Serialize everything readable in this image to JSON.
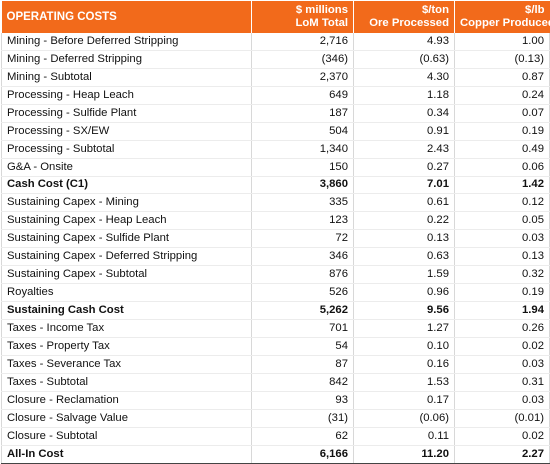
{
  "header": {
    "label": "OPERATING COSTS",
    "col1_l1": "$ millions",
    "col1_l2": "LoM Total",
    "col2_l1": "$/ton",
    "col2_l2": "Ore Processed",
    "col3_l1": "$/lb",
    "col3_l2": "Copper Produced"
  },
  "rows": [
    {
      "label": "Mining - Before Deferred Stripping",
      "total": "2,716",
      "per_ton": "4.93",
      "per_lb": "1.00"
    },
    {
      "label": "Mining - Deferred Stripping",
      "total": "(346)",
      "per_ton": "(0.63)",
      "per_lb": "(0.13)"
    },
    {
      "label": "Mining - Subtotal",
      "total": "2,370",
      "per_ton": "4.30",
      "per_lb": "0.87"
    },
    {
      "label": "Processing - Heap Leach",
      "total": "649",
      "per_ton": "1.18",
      "per_lb": "0.24"
    },
    {
      "label": "Processing - Sulfide Plant",
      "total": "187",
      "per_ton": "0.34",
      "per_lb": "0.07"
    },
    {
      "label": "Processing - SX/EW",
      "total": "504",
      "per_ton": "0.91",
      "per_lb": "0.19"
    },
    {
      "label": "Processing - Subtotal",
      "total": "1,340",
      "per_ton": "2.43",
      "per_lb": "0.49"
    },
    {
      "label": "G&A - Onsite",
      "total": "150",
      "per_ton": "0.27",
      "per_lb": "0.06"
    },
    {
      "label": "Cash Cost (C1)",
      "total": "3,860",
      "per_ton": "7.01",
      "per_lb": "1.42"
    },
    {
      "label": "Sustaining Capex - Mining",
      "total": "335",
      "per_ton": "0.61",
      "per_lb": "0.12"
    },
    {
      "label": "Sustaining Capex - Heap Leach",
      "total": "123",
      "per_ton": "0.22",
      "per_lb": "0.05"
    },
    {
      "label": "Sustaining Capex - Sulfide Plant",
      "total": "72",
      "per_ton": "0.13",
      "per_lb": "0.03"
    },
    {
      "label": "Sustaining Capex - Deferred Stripping",
      "total": "346",
      "per_ton": "0.63",
      "per_lb": "0.13"
    },
    {
      "label": "Sustaining Capex - Subtotal",
      "total": "876",
      "per_ton": "1.59",
      "per_lb": "0.32"
    },
    {
      "label": "Royalties",
      "total": "526",
      "per_ton": "0.96",
      "per_lb": "0.19"
    },
    {
      "label": "Sustaining Cash Cost",
      "total": "5,262",
      "per_ton": "9.56",
      "per_lb": "1.94"
    },
    {
      "label": "Taxes - Income Tax",
      "total": "701",
      "per_ton": "1.27",
      "per_lb": "0.26"
    },
    {
      "label": "Taxes - Property Tax",
      "total": "54",
      "per_ton": "0.10",
      "per_lb": "0.02"
    },
    {
      "label": "Taxes - Severance Tax",
      "total": "87",
      "per_ton": "0.16",
      "per_lb": "0.03"
    },
    {
      "label": "Taxes - Subtotal",
      "total": "842",
      "per_ton": "1.53",
      "per_lb": "0.31"
    },
    {
      "label": "Closure - Reclamation",
      "total": "93",
      "per_ton": "0.17",
      "per_lb": "0.03"
    },
    {
      "label": "Closure - Salvage Value",
      "total": "(31)",
      "per_ton": "(0.06)",
      "per_lb": "(0.01)"
    },
    {
      "label": "Closure - Subtotal",
      "total": "62",
      "per_ton": "0.11",
      "per_lb": "0.02"
    },
    {
      "label": "All-In Cost",
      "total": "6,166",
      "per_ton": "11.20",
      "per_lb": "2.27"
    }
  ],
  "colors": {
    "header_bg": "#f26a1b",
    "header_text": "#ffffff"
  }
}
